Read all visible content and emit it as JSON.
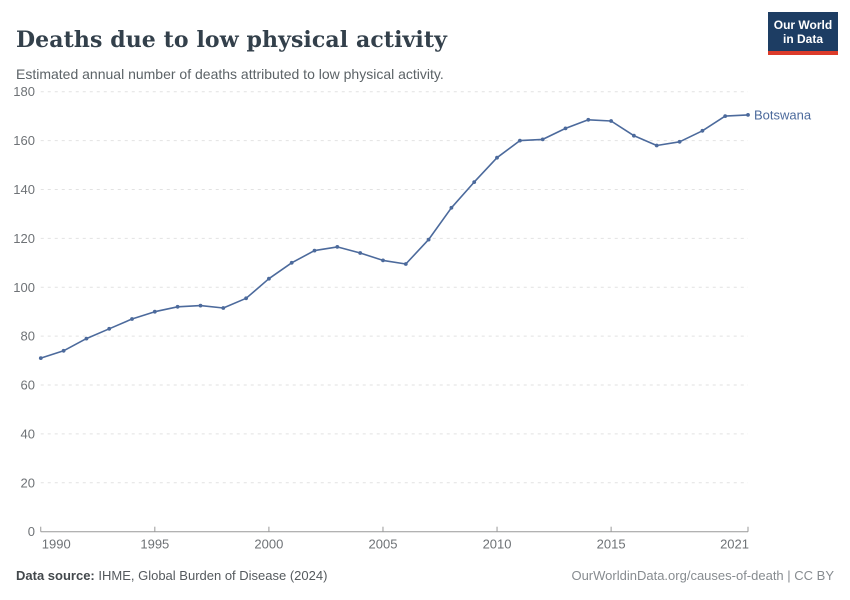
{
  "header": {
    "title": "Deaths due to low physical activity",
    "subtitle": "Estimated annual number of deaths attributed to low physical activity.",
    "logo": {
      "line1": "Our World",
      "line2": "in Data",
      "bg_color": "#1d3d63",
      "bar_color": "#dc3b2a"
    }
  },
  "chart_data": {
    "type": "line",
    "title": "Deaths due to low physical activity",
    "subtitle": "Estimated annual number of deaths attributed to low physical activity.",
    "xlim": [
      1990,
      2021
    ],
    "ylim": [
      0,
      180
    ],
    "x_ticks": [
      1990,
      1995,
      2000,
      2005,
      2010,
      2015,
      2021
    ],
    "y_ticks": [
      0,
      20,
      40,
      60,
      80,
      100,
      120,
      140,
      160,
      180
    ],
    "grid": "horizontal-dashed",
    "legend_position": "end-of-line-label",
    "x": [
      1990,
      1991,
      1992,
      1993,
      1994,
      1995,
      1996,
      1997,
      1998,
      1999,
      2000,
      2001,
      2002,
      2003,
      2004,
      2005,
      2006,
      2007,
      2008,
      2009,
      2010,
      2011,
      2012,
      2013,
      2014,
      2015,
      2016,
      2017,
      2018,
      2019,
      2020,
      2021
    ],
    "series": [
      {
        "name": "Botswana",
        "color": "#4c6a9c",
        "values": [
          71,
          74,
          79,
          83,
          87,
          90,
          92,
          92.5,
          91.5,
          95.5,
          103.5,
          110,
          115,
          116.5,
          114,
          111,
          109.5,
          119.5,
          132.5,
          143,
          153,
          160,
          160.5,
          165,
          168.5,
          168,
          162,
          158,
          159.5,
          164,
          170,
          170.5
        ]
      }
    ],
    "colors": {
      "gridline": "#e2e2e2",
      "axis_line": "#999999",
      "tick_label": "#6e7276"
    }
  },
  "footer": {
    "datasource_label": "Data source:",
    "datasource_value": "IHME, Global Burden of Disease (2024)",
    "attribution": "OurWorldinData.org/causes-of-death | CC BY"
  }
}
